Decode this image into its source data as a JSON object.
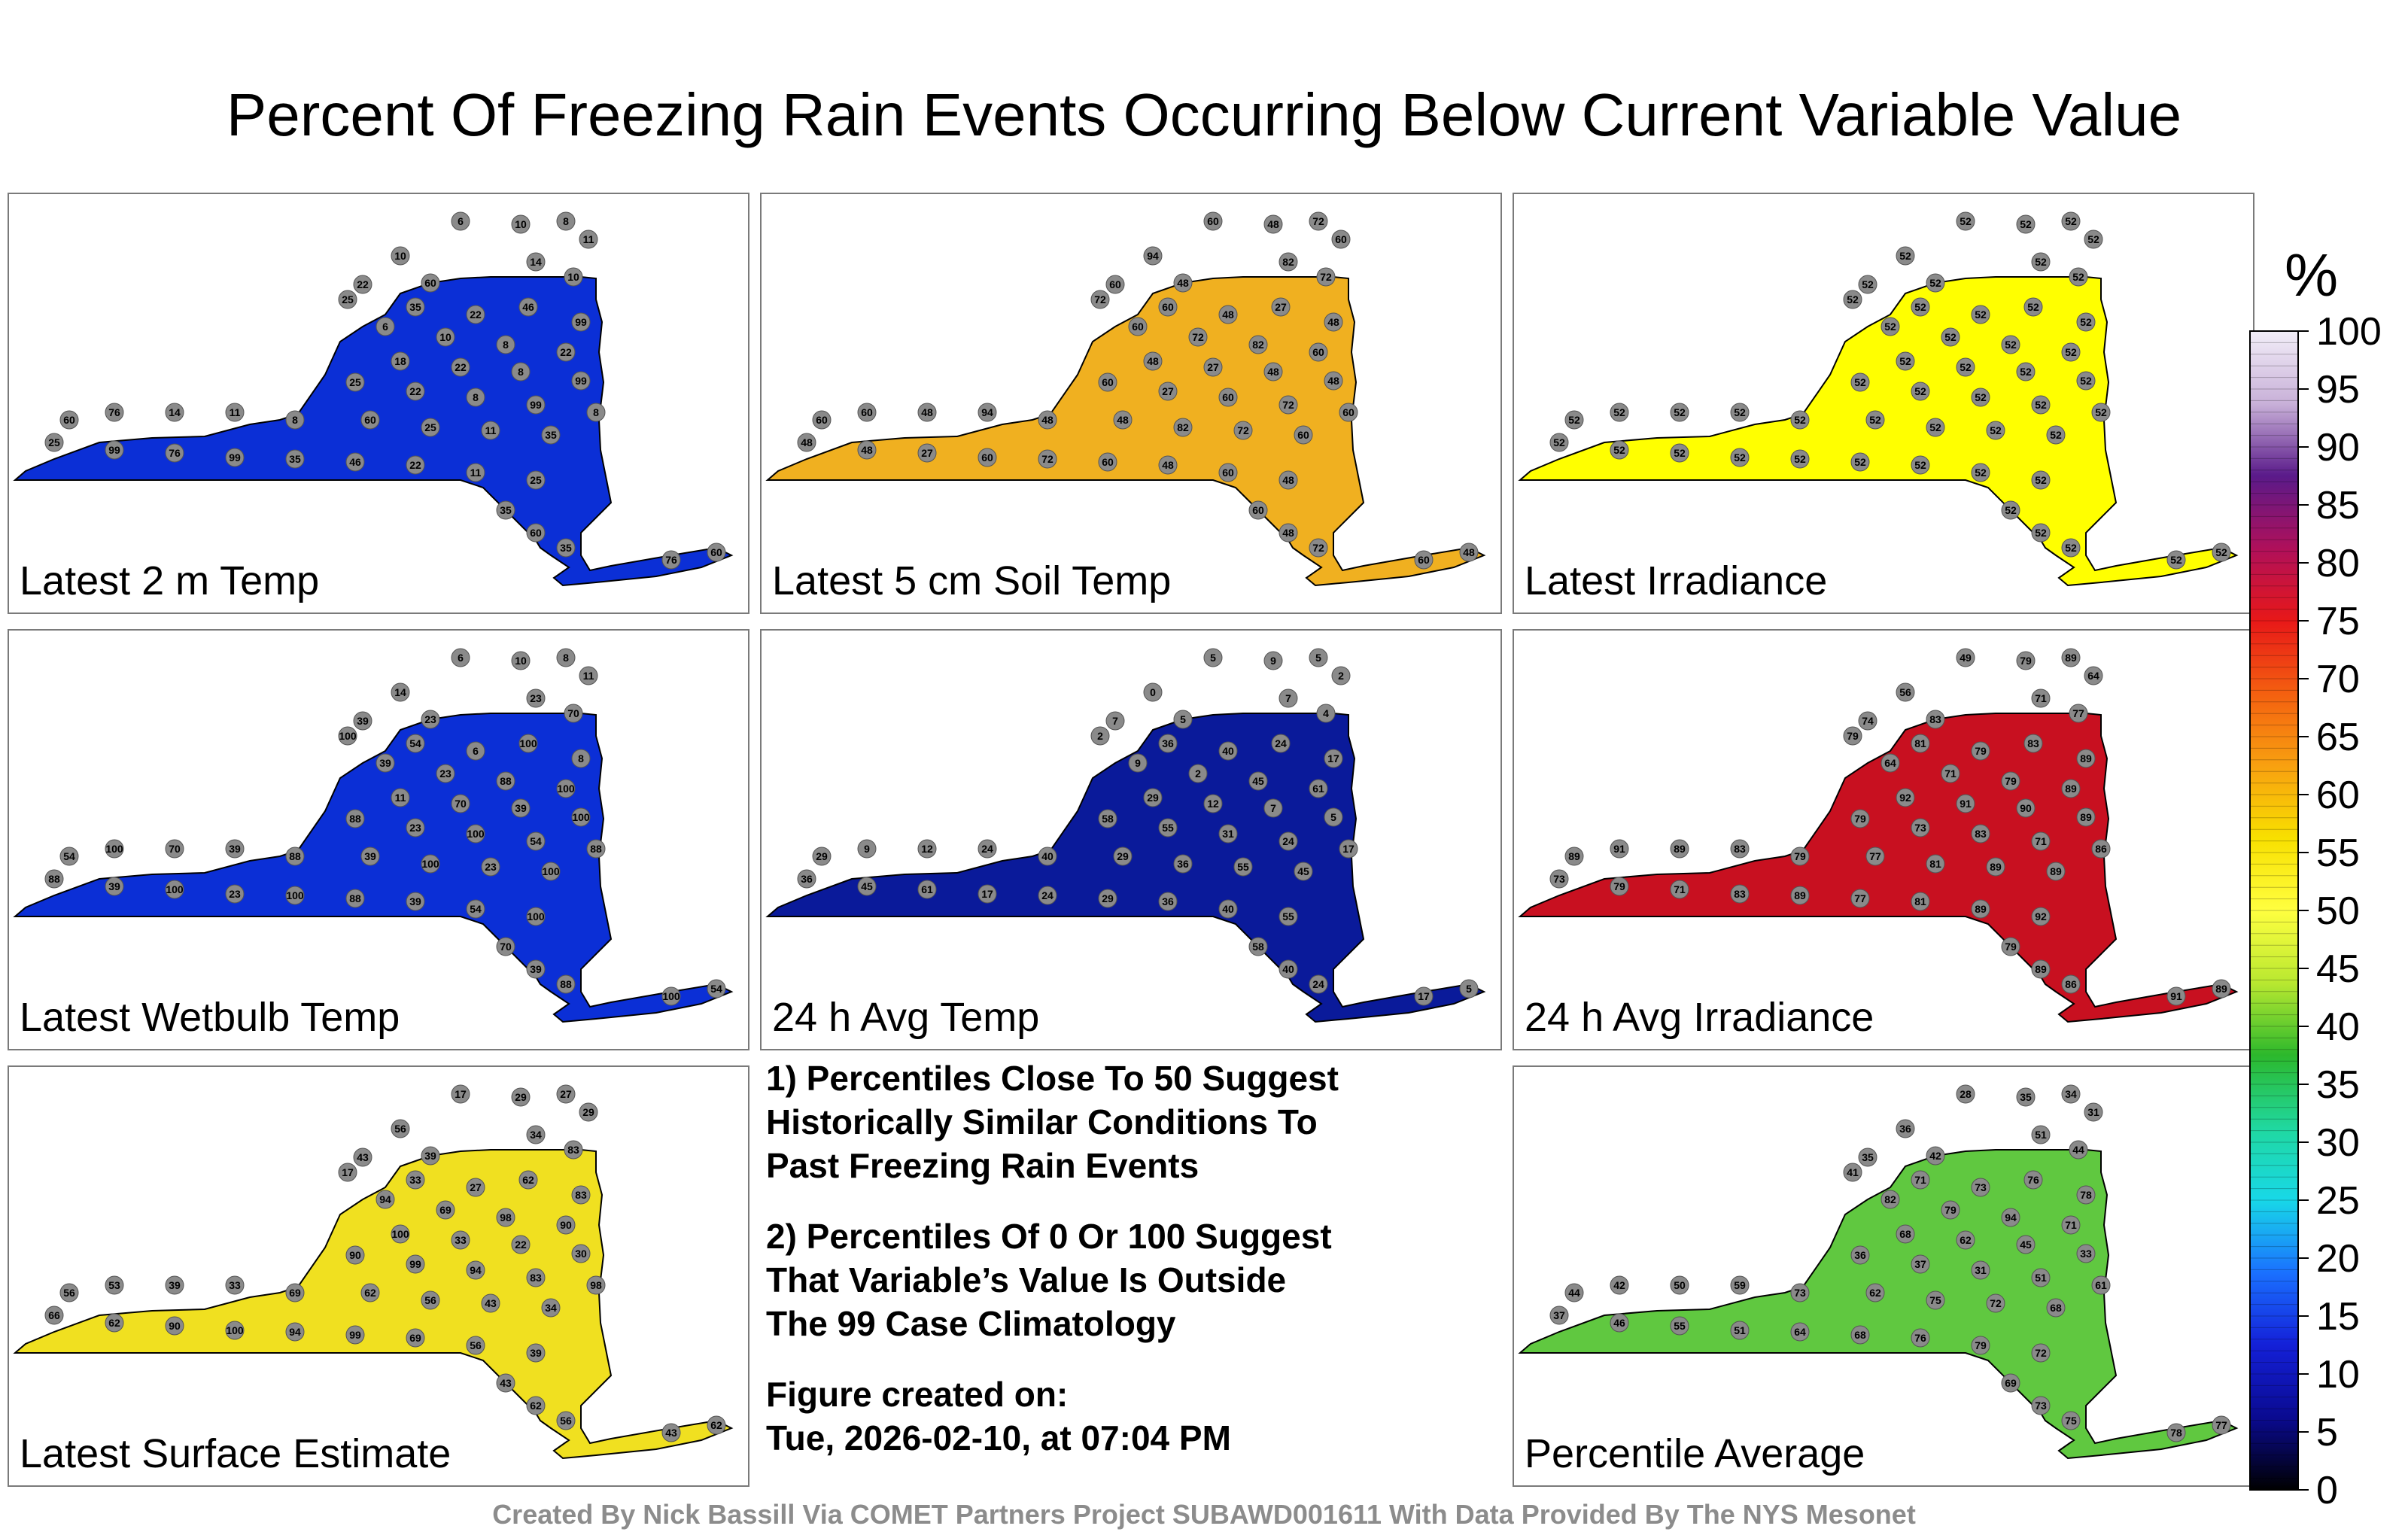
{
  "title": "Percent Of Freezing Rain Events Occurring Below Current Variable Value",
  "panels": [
    {
      "label": "Latest 2 m Temp",
      "base_color": "#0b2fd6",
      "stations": [
        "6",
        "10",
        "8",
        "11",
        "10",
        "14",
        "10",
        "60",
        "22",
        "25",
        "35",
        "22",
        "46",
        "99",
        "6",
        "10",
        "8",
        "22",
        "18",
        "22",
        "8",
        "99",
        "25",
        "22",
        "8",
        "99",
        "8",
        "60",
        "25",
        "11",
        "35",
        "8",
        "11",
        "14",
        "76",
        "60",
        "25",
        "99",
        "76",
        "99",
        "35",
        "46",
        "22",
        "11",
        "25",
        "35",
        "60",
        "35",
        "76",
        "60"
      ]
    },
    {
      "label": "Latest 5 cm Soil Temp",
      "base_color": "#f0b020",
      "stations": [
        "60",
        "48",
        "72",
        "60",
        "94",
        "82",
        "72",
        "48",
        "60",
        "72",
        "60",
        "48",
        "27",
        "48",
        "60",
        "72",
        "82",
        "60",
        "48",
        "27",
        "48",
        "48",
        "60",
        "27",
        "60",
        "72",
        "60",
        "48",
        "82",
        "72",
        "60",
        "48",
        "94",
        "48",
        "60",
        "60",
        "48",
        "48",
        "27",
        "60",
        "72",
        "60",
        "48",
        "60",
        "48",
        "60",
        "48",
        "72",
        "60",
        "48"
      ]
    },
    {
      "label": "Latest Irradiance",
      "base_color": "#ffff00",
      "stations": [
        "52",
        "52",
        "52",
        "52",
        "52",
        "52",
        "52",
        "52",
        "52",
        "52",
        "52",
        "52",
        "52",
        "52",
        "52",
        "52",
        "52",
        "52",
        "52",
        "52",
        "52",
        "52",
        "52",
        "52",
        "52",
        "52",
        "52",
        "52",
        "52",
        "52",
        "52",
        "52",
        "52",
        "52",
        "52",
        "52",
        "52",
        "52",
        "52",
        "52",
        "52",
        "52",
        "52",
        "52",
        "52",
        "52",
        "52",
        "52",
        "52",
        "52"
      ]
    },
    {
      "label": "Latest Wetbulb Temp",
      "base_color": "#0b2fd6",
      "stations": [
        "6",
        "10",
        "8",
        "11",
        "14",
        "23",
        "70",
        "23",
        "39",
        "100",
        "54",
        "6",
        "100",
        "8",
        "39",
        "23",
        "88",
        "100",
        "11",
        "70",
        "39",
        "100",
        "88",
        "23",
        "100",
        "54",
        "88",
        "39",
        "100",
        "23",
        "100",
        "88",
        "39",
        "70",
        "100",
        "54",
        "88",
        "39",
        "100",
        "23",
        "100",
        "88",
        "39",
        "54",
        "100",
        "70",
        "39",
        "88",
        "100",
        "54"
      ]
    },
    {
      "label": "24 h Avg Temp",
      "base_color": "#0a1a9a",
      "stations": [
        "5",
        "9",
        "5",
        "2",
        "0",
        "7",
        "4",
        "5",
        "7",
        "2",
        "36",
        "40",
        "24",
        "17",
        "9",
        "2",
        "45",
        "61",
        "29",
        "12",
        "7",
        "5",
        "58",
        "55",
        "31",
        "24",
        "17",
        "29",
        "36",
        "55",
        "45",
        "40",
        "24",
        "12",
        "9",
        "29",
        "36",
        "45",
        "61",
        "17",
        "24",
        "29",
        "36",
        "40",
        "55",
        "58",
        "40",
        "24",
        "17",
        "5"
      ]
    },
    {
      "label": "24 h Avg Irradiance",
      "base_color": "#c81020",
      "stations": [
        "49",
        "79",
        "89",
        "64",
        "56",
        "71",
        "77",
        "83",
        "74",
        "79",
        "81",
        "79",
        "83",
        "89",
        "64",
        "71",
        "79",
        "89",
        "92",
        "91",
        "90",
        "89",
        "79",
        "73",
        "83",
        "71",
        "86",
        "77",
        "81",
        "89",
        "89",
        "79",
        "83",
        "89",
        "91",
        "89",
        "73",
        "79",
        "71",
        "83",
        "89",
        "77",
        "81",
        "89",
        "92",
        "79",
        "89",
        "86",
        "91",
        "89"
      ]
    },
    {
      "label": "Latest Surface Estimate",
      "base_color": "#f0e020",
      "stations": [
        "17",
        "29",
        "27",
        "29",
        "56",
        "34",
        "83",
        "39",
        "43",
        "17",
        "33",
        "27",
        "62",
        "83",
        "94",
        "69",
        "98",
        "90",
        "100",
        "33",
        "22",
        "30",
        "90",
        "99",
        "94",
        "83",
        "98",
        "62",
        "56",
        "43",
        "34",
        "69",
        "33",
        "39",
        "53",
        "56",
        "66",
        "62",
        "90",
        "100",
        "94",
        "99",
        "69",
        "56",
        "39",
        "43",
        "62",
        "56",
        "43",
        "62"
      ]
    },
    {
      "label": "Percentile Average",
      "base_color": "#60c840",
      "stations": [
        "28",
        "35",
        "34",
        "31",
        "36",
        "51",
        "44",
        "42",
        "35",
        "41",
        "71",
        "73",
        "76",
        "78",
        "82",
        "79",
        "94",
        "71",
        "68",
        "62",
        "45",
        "33",
        "36",
        "37",
        "31",
        "51",
        "61",
        "62",
        "75",
        "72",
        "68",
        "73",
        "59",
        "50",
        "42",
        "44",
        "37",
        "46",
        "55",
        "51",
        "64",
        "68",
        "76",
        "79",
        "72",
        "69",
        "73",
        "75",
        "78",
        "77"
      ]
    }
  ],
  "notes": {
    "note1_line1": "1) Percentiles Close To 50 Suggest",
    "note1_line2": "Historically Similar Conditions To",
    "note1_line3": "Past Freezing Rain Events",
    "note2_line1": "2) Percentiles Of 0 Or 100 Suggest",
    "note2_line2": "That Variable’s Value Is Outside",
    "note2_line3": "The 99 Case Climatology",
    "created_label": "Figure created on:",
    "created_value": "Tue, 2026-02-10, at 07:04 PM"
  },
  "colorbar": {
    "unit": "%",
    "ticks": [
      "100",
      "95",
      "90",
      "85",
      "80",
      "75",
      "70",
      "65",
      "60",
      "55",
      "50",
      "45",
      "40",
      "35",
      "30",
      "25",
      "20",
      "15",
      "10",
      "5",
      "0"
    ],
    "stops": [
      "#f2eef8",
      "#c8b0d8",
      "#5a1a8a",
      "#b0105a",
      "#e81818",
      "#f46010",
      "#f8a010",
      "#f8e000",
      "#ffff40",
      "#b8e830",
      "#2cb82c",
      "#20d8a0",
      "#18d8e8",
      "#1a70ff",
      "#1420d8",
      "#0a0a90",
      "#000000"
    ]
  },
  "footer": "Created By Nick Bassill Via COMET Partners Project SUBAWD001611 With Data Provided By The NYS Mesonet"
}
